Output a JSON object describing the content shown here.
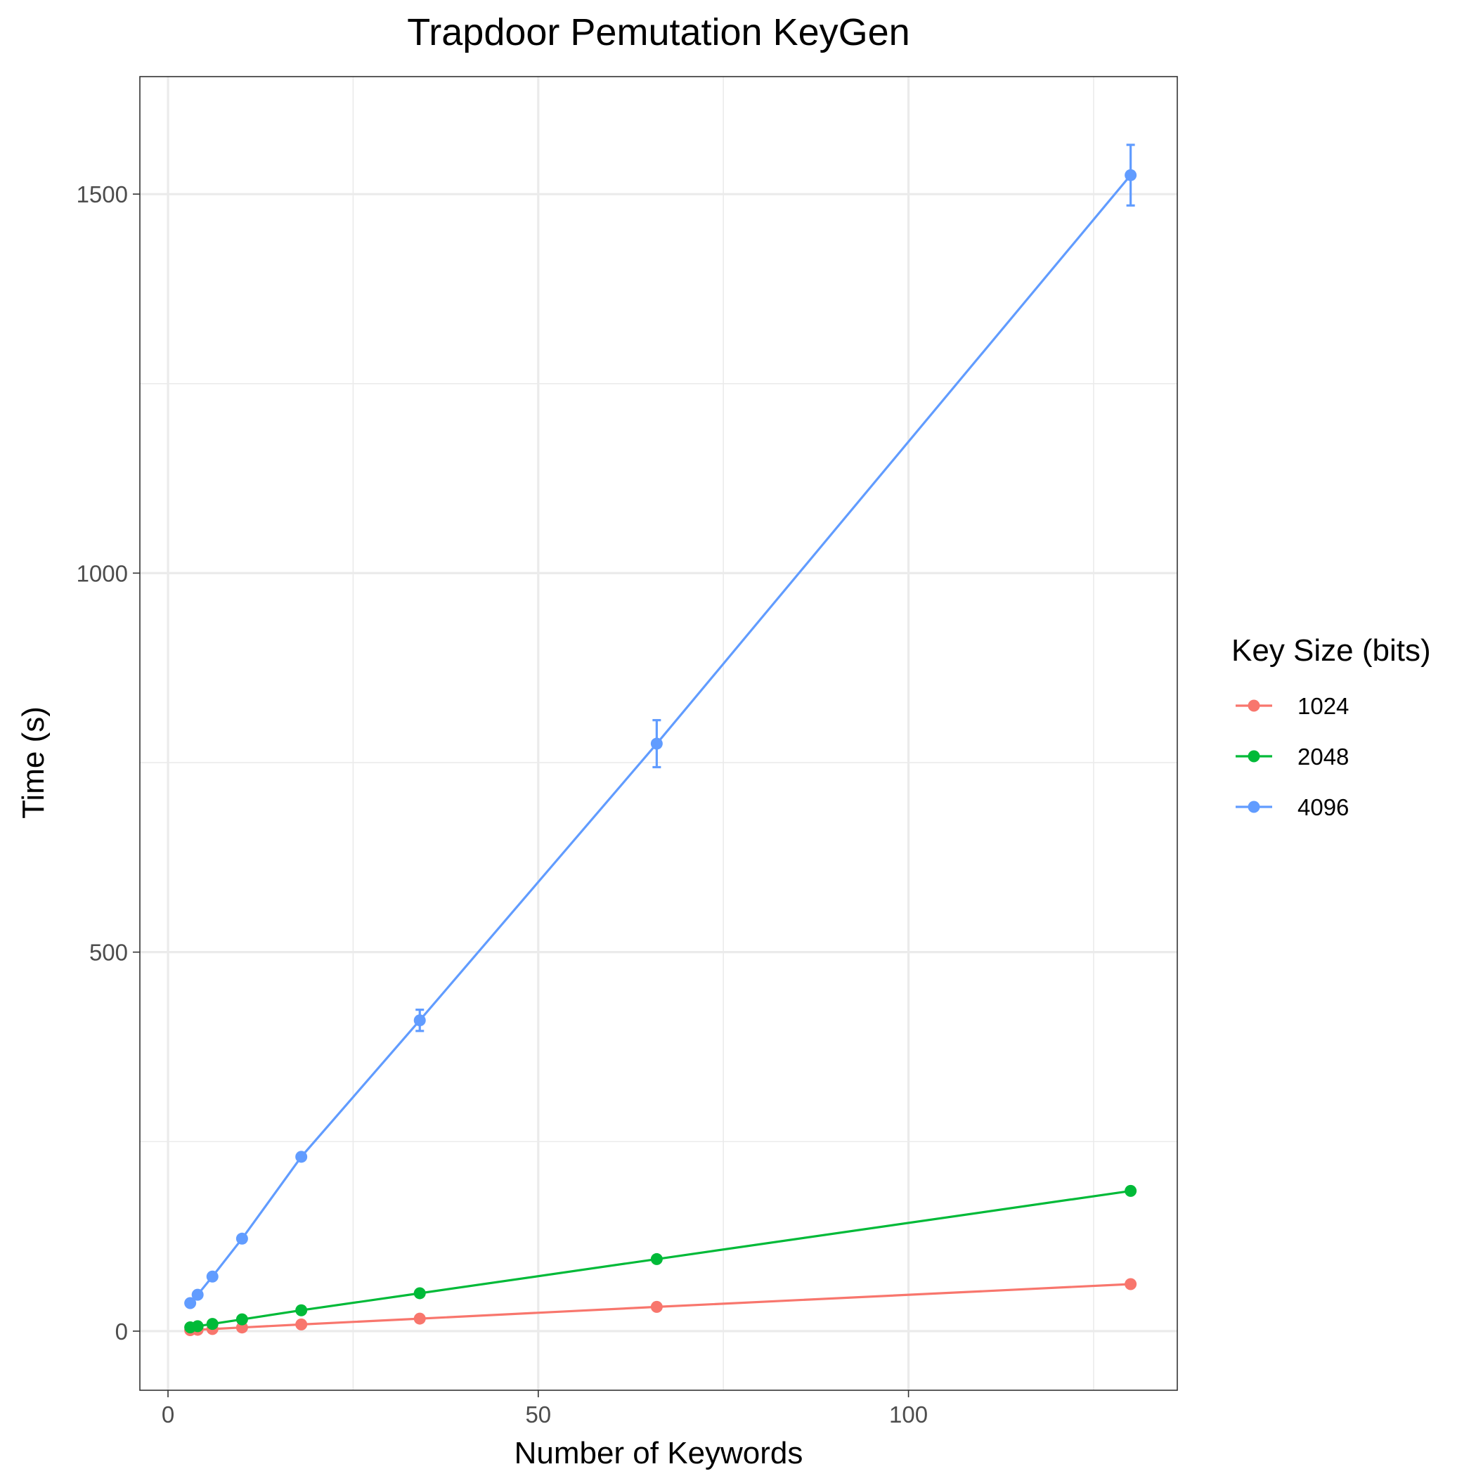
{
  "chart_data": {
    "type": "line",
    "title": "Trapdoor Pemutation KeyGen",
    "xlabel": "Number of Keywords",
    "ylabel": "Time (s)",
    "xlim": [
      -3.8,
      136.3
    ],
    "ylim": [
      -78,
      1655
    ],
    "x_ticks": [
      0,
      50,
      100
    ],
    "x_tick_labels": [
      "0",
      "50",
      "100"
    ],
    "x_minor_ticks": [
      25,
      75,
      125
    ],
    "y_ticks": [
      0,
      500,
      1000,
      1500
    ],
    "y_tick_labels": [
      "0",
      "500",
      "1000",
      "1500"
    ],
    "y_minor_ticks": [
      250,
      750,
      1250
    ],
    "grid": true,
    "legend": {
      "title": "Key Size (bits)",
      "position": "right"
    },
    "x": [
      3,
      4,
      6,
      10,
      18,
      34,
      66,
      130
    ],
    "series": [
      {
        "name": "1024",
        "color": "#F8766D",
        "values": [
          1.3,
          1.8,
          2.8,
          4.8,
          8.8,
          16.5,
          32,
          62
        ],
        "error": [
          0,
          0,
          0,
          0,
          0,
          0,
          0,
          0
        ]
      },
      {
        "name": "2048",
        "color": "#00BA38",
        "values": [
          5,
          6.5,
          9.5,
          15.5,
          27.5,
          50,
          95,
          185
        ],
        "error": [
          0,
          0,
          0,
          0,
          0,
          0,
          0,
          0
        ]
      },
      {
        "name": "4096",
        "color": "#619CFF",
        "values": [
          37,
          48,
          72,
          122,
          230,
          410,
          775,
          1525
        ],
        "error": [
          0,
          0,
          0,
          0,
          3,
          14,
          31,
          40
        ]
      }
    ]
  }
}
